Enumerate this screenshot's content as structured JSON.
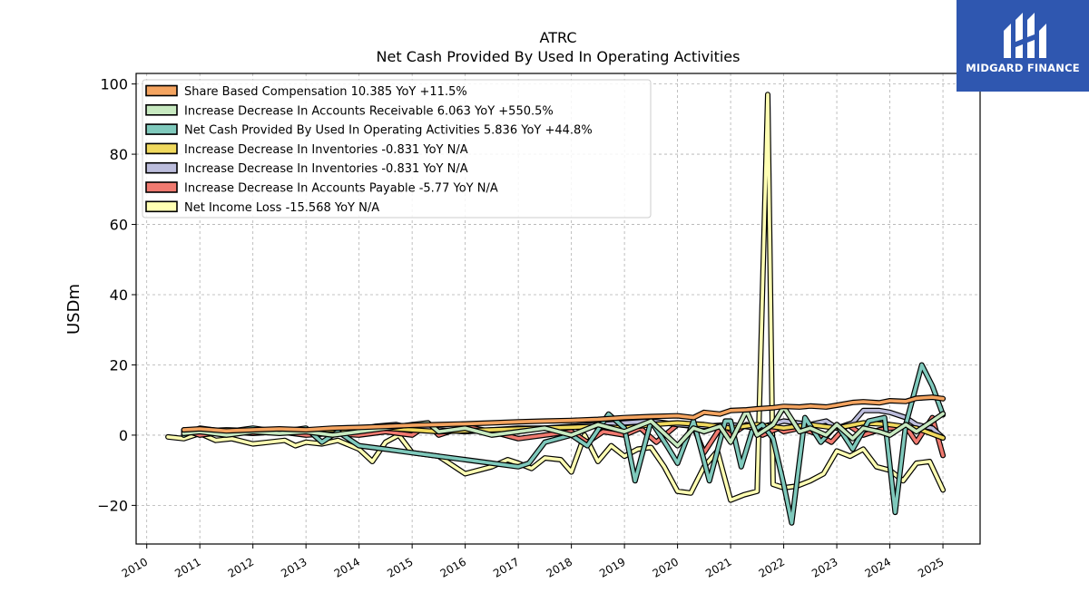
{
  "brand": {
    "name": "MIDGARD FINANCE",
    "bg_color": "#2f57b0"
  },
  "chart_data": {
    "type": "line",
    "title": "ATRC",
    "subtitle": "Net Cash Provided By Used In Operating Activities",
    "xlabel": "",
    "ylabel": "USDm",
    "xlim": [
      2009.8,
      2025.7
    ],
    "ylim": [
      -31,
      103
    ],
    "x_ticks": [
      2010,
      2011,
      2012,
      2013,
      2014,
      2015,
      2016,
      2017,
      2018,
      2019,
      2020,
      2021,
      2022,
      2023,
      2024,
      2025
    ],
    "y_ticks": [
      -20,
      0,
      20,
      40,
      60,
      80,
      100
    ],
    "grid": true,
    "legend_position": "top-left",
    "series": [
      {
        "name": "Share Based Compensation  10.385 YoY +11.5%",
        "color": "#f4a460",
        "x": [
          2010.7,
          2011.0,
          2011.5,
          2012.0,
          2012.5,
          2013.0,
          2013.5,
          2014.0,
          2014.5,
          2015.0,
          2015.5,
          2016.0,
          2016.5,
          2017.0,
          2017.5,
          2018.0,
          2018.5,
          2019.0,
          2019.5,
          2020.0,
          2020.3,
          2020.5,
          2020.8,
          2021.0,
          2021.3,
          2021.5,
          2021.8,
          2022.0,
          2022.3,
          2022.5,
          2022.8,
          2023.0,
          2023.3,
          2023.5,
          2023.8,
          2024.0,
          2024.3,
          2024.5,
          2024.8,
          2025.0
        ],
        "y": [
          1.5,
          1.8,
          1.2,
          1.5,
          1.8,
          1.5,
          2.0,
          2.2,
          2.5,
          2.8,
          3.0,
          3.2,
          3.5,
          3.8,
          4.0,
          4.2,
          4.5,
          5.0,
          5.3,
          5.5,
          5.0,
          6.5,
          6.0,
          7.0,
          7.2,
          7.5,
          7.8,
          8.2,
          8.0,
          8.3,
          8.0,
          8.5,
          9.3,
          9.5,
          9.2,
          9.8,
          9.6,
          10.5,
          10.8,
          10.4
        ]
      },
      {
        "name": "Increase Decrease In Accounts Receivable  6.063 YoY +550.5%",
        "color": "#c7e9c0",
        "x": [
          2010.7,
          2011.0,
          2011.5,
          2012.0,
          2012.5,
          2013.0,
          2013.5,
          2014.0,
          2014.5,
          2015.0,
          2015.3,
          2015.5,
          2016.0,
          2016.5,
          2017.0,
          2017.5,
          2018.0,
          2018.5,
          2019.0,
          2019.5,
          2020.0,
          2020.3,
          2020.5,
          2020.8,
          2021.0,
          2021.3,
          2021.5,
          2021.8,
          2022.0,
          2022.3,
          2022.5,
          2022.8,
          2023.0,
          2023.3,
          2023.5,
          2023.8,
          2024.0,
          2024.3,
          2024.5,
          2024.8,
          2025.0
        ],
        "y": [
          0.5,
          1.0,
          0.0,
          1.0,
          0.5,
          1.0,
          0.0,
          1.0,
          2.0,
          3.0,
          3.5,
          1.0,
          2.0,
          0.0,
          1.0,
          2.0,
          0.0,
          3.0,
          1.0,
          4.0,
          -3.0,
          2.0,
          1.0,
          2.5,
          -2.0,
          7.0,
          0.0,
          3.0,
          8.0,
          1.0,
          2.0,
          0.0,
          3.0,
          -1.0,
          2.0,
          1.0,
          0.0,
          3.0,
          1.0,
          4.0,
          6.1
        ]
      },
      {
        "name": "Net Cash Provided By Used In Operating Activities  5.836 YoY +44.8%",
        "color": "#7fc9bc",
        "x": [
          2010.7,
          2011.0,
          2011.5,
          2012.0,
          2012.5,
          2013.0,
          2013.3,
          2013.6,
          2014.0,
          2014.5,
          2015.0,
          2015.5,
          2016.0,
          2016.5,
          2017.0,
          2017.2,
          2017.5,
          2018.0,
          2018.3,
          2018.7,
          2019.0,
          2019.2,
          2019.5,
          2019.8,
          2020.0,
          2020.3,
          2020.6,
          2020.9,
          2021.0,
          2021.2,
          2021.4,
          2021.6,
          2021.8,
          2022.0,
          2022.15,
          2022.4,
          2022.7,
          2023.0,
          2023.3,
          2023.6,
          2023.9,
          2024.1,
          2024.3,
          2024.6,
          2024.8,
          2025.0
        ],
        "y": [
          0.0,
          2.0,
          1.0,
          2.0,
          1.0,
          2.0,
          -2.0,
          1.0,
          -3.0,
          -4.0,
          -5.0,
          -6.0,
          -7.0,
          -8.0,
          -9.0,
          -8.0,
          -2.0,
          0.0,
          -3.0,
          6.0,
          2.0,
          -13.0,
          4.0,
          -3.0,
          -8.0,
          4.0,
          -13.0,
          4.0,
          4.0,
          -9.0,
          1.0,
          3.0,
          -1.0,
          -14.0,
          -25.0,
          5.0,
          -2.0,
          3.0,
          -4.0,
          4.0,
          5.0,
          -22.0,
          3.0,
          20.0,
          14.0,
          5.8
        ]
      },
      {
        "name": "Increase Decrease In Inventories  -0.831 YoY N/A",
        "color": "#f0d95e",
        "x": [
          2010.7,
          2011.5,
          2012.5,
          2013.5,
          2014.5,
          2015.5,
          2016.5,
          2017.5,
          2018.5,
          2019.0,
          2019.5,
          2020.0,
          2020.5,
          2021.0,
          2021.5,
          2022.0,
          2022.5,
          2023.0,
          2023.5,
          2024.0,
          2024.5,
          2025.0
        ],
        "y": [
          1.0,
          1.5,
          1.0,
          1.5,
          2.0,
          1.0,
          1.5,
          2.0,
          2.5,
          2.0,
          3.0,
          3.5,
          3.0,
          2.0,
          3.0,
          2.0,
          3.0,
          2.0,
          3.5,
          3.0,
          2.0,
          -0.8
        ]
      },
      {
        "name": "Increase Decrease In Inventories  -0.831 YoY N/A",
        "color": "#bcbddc",
        "x": [
          2010.7,
          2011.0,
          2011.5,
          2012.0,
          2012.5,
          2013.0,
          2013.5,
          2014.0,
          2014.3,
          2014.7,
          2015.0,
          2015.5,
          2016.0,
          2016.5,
          2017.0,
          2017.5,
          2018.0,
          2018.5,
          2019.0,
          2019.5,
          2020.0,
          2020.5,
          2021.0,
          2021.5,
          2022.0,
          2022.5,
          2022.8,
          2023.0,
          2023.3,
          2023.5,
          2023.8,
          2024.0,
          2024.3,
          2024.5,
          2024.8,
          2025.0
        ],
        "y": [
          1.0,
          1.5,
          1.0,
          1.5,
          1.0,
          1.5,
          1.0,
          1.5,
          2.5,
          3.0,
          2.0,
          1.5,
          1.0,
          1.5,
          2.0,
          2.0,
          2.5,
          3.0,
          3.5,
          4.0,
          3.0,
          2.5,
          3.0,
          2.0,
          4.0,
          3.0,
          4.0,
          2.0,
          3.5,
          7.0,
          7.0,
          6.5,
          5.0,
          3.0,
          2.0,
          -0.8
        ]
      },
      {
        "name": "Increase Decrease In Accounts Payable  -5.77 YoY N/A",
        "color": "#f07a70",
        "x": [
          2010.7,
          2011.0,
          2011.5,
          2012.0,
          2012.5,
          2013.0,
          2013.5,
          2014.0,
          2014.5,
          2015.0,
          2015.3,
          2015.5,
          2016.0,
          2016.5,
          2017.0,
          2017.5,
          2018.0,
          2018.3,
          2018.6,
          2019.0,
          2019.3,
          2019.6,
          2020.0,
          2020.3,
          2020.5,
          2020.8,
          2021.0,
          2021.3,
          2021.6,
          2021.9,
          2022.0,
          2022.3,
          2022.6,
          2022.9,
          2023.2,
          2023.5,
          2023.8,
          2024.0,
          2024.3,
          2024.5,
          2024.8,
          2025.0
        ],
        "y": [
          1.5,
          0.0,
          1.0,
          0.5,
          1.0,
          0.0,
          0.5,
          0.0,
          1.0,
          0.0,
          3.0,
          0.0,
          2.5,
          1.0,
          -1.0,
          0.0,
          1.0,
          -2.0,
          1.0,
          0.0,
          2.0,
          -2.0,
          3.0,
          2.5,
          -5.0,
          2.0,
          0.0,
          3.0,
          0.0,
          2.0,
          1.0,
          2.0,
          0.5,
          -2.0,
          3.0,
          0.0,
          1.5,
          2.0,
          2.5,
          -2.0,
          5.0,
          -5.8
        ]
      },
      {
        "name": "Net Income Loss  -15.568 YoY N/A",
        "color": "#ffffb3",
        "x": [
          2010.4,
          2010.7,
          2011.0,
          2011.3,
          2011.6,
          2012.0,
          2012.3,
          2012.6,
          2012.8,
          2013.0,
          2013.3,
          2013.6,
          2014.0,
          2014.25,
          2014.5,
          2014.75,
          2015.0,
          2015.5,
          2016.0,
          2016.5,
          2016.8,
          2017.0,
          2017.25,
          2017.5,
          2017.8,
          2018.0,
          2018.25,
          2018.5,
          2018.75,
          2019.0,
          2019.25,
          2019.5,
          2019.75,
          2020.0,
          2020.25,
          2020.5,
          2020.75,
          2021.0,
          2021.25,
          2021.5,
          2021.7,
          2021.8,
          2022.0,
          2022.25,
          2022.5,
          2022.75,
          2023.0,
          2023.25,
          2023.5,
          2023.75,
          2024.0,
          2024.25,
          2024.5,
          2024.75,
          2025.0
        ],
        "y": [
          -0.5,
          -1.0,
          0.5,
          -1.5,
          -1.0,
          -2.5,
          -2.0,
          -1.5,
          -3.0,
          -2.0,
          -2.5,
          -1.5,
          -4.0,
          -7.5,
          -2.0,
          0.0,
          -5.0,
          -6.0,
          -11.0,
          -9.0,
          -7.0,
          -8.0,
          -9.5,
          -6.5,
          -7.0,
          -10.5,
          0.0,
          -7.5,
          -3.0,
          -6.0,
          -4.0,
          -3.5,
          -9.0,
          -16.0,
          -16.5,
          -9.0,
          -4.5,
          -18.5,
          -17.0,
          -16.0,
          97.0,
          -14.0,
          -15.0,
          -14.5,
          -13.0,
          -11.0,
          -4.5,
          -6.0,
          -4.0,
          -9.0,
          -10.0,
          -13.0,
          -8.0,
          -7.5,
          -15.6
        ]
      }
    ]
  }
}
